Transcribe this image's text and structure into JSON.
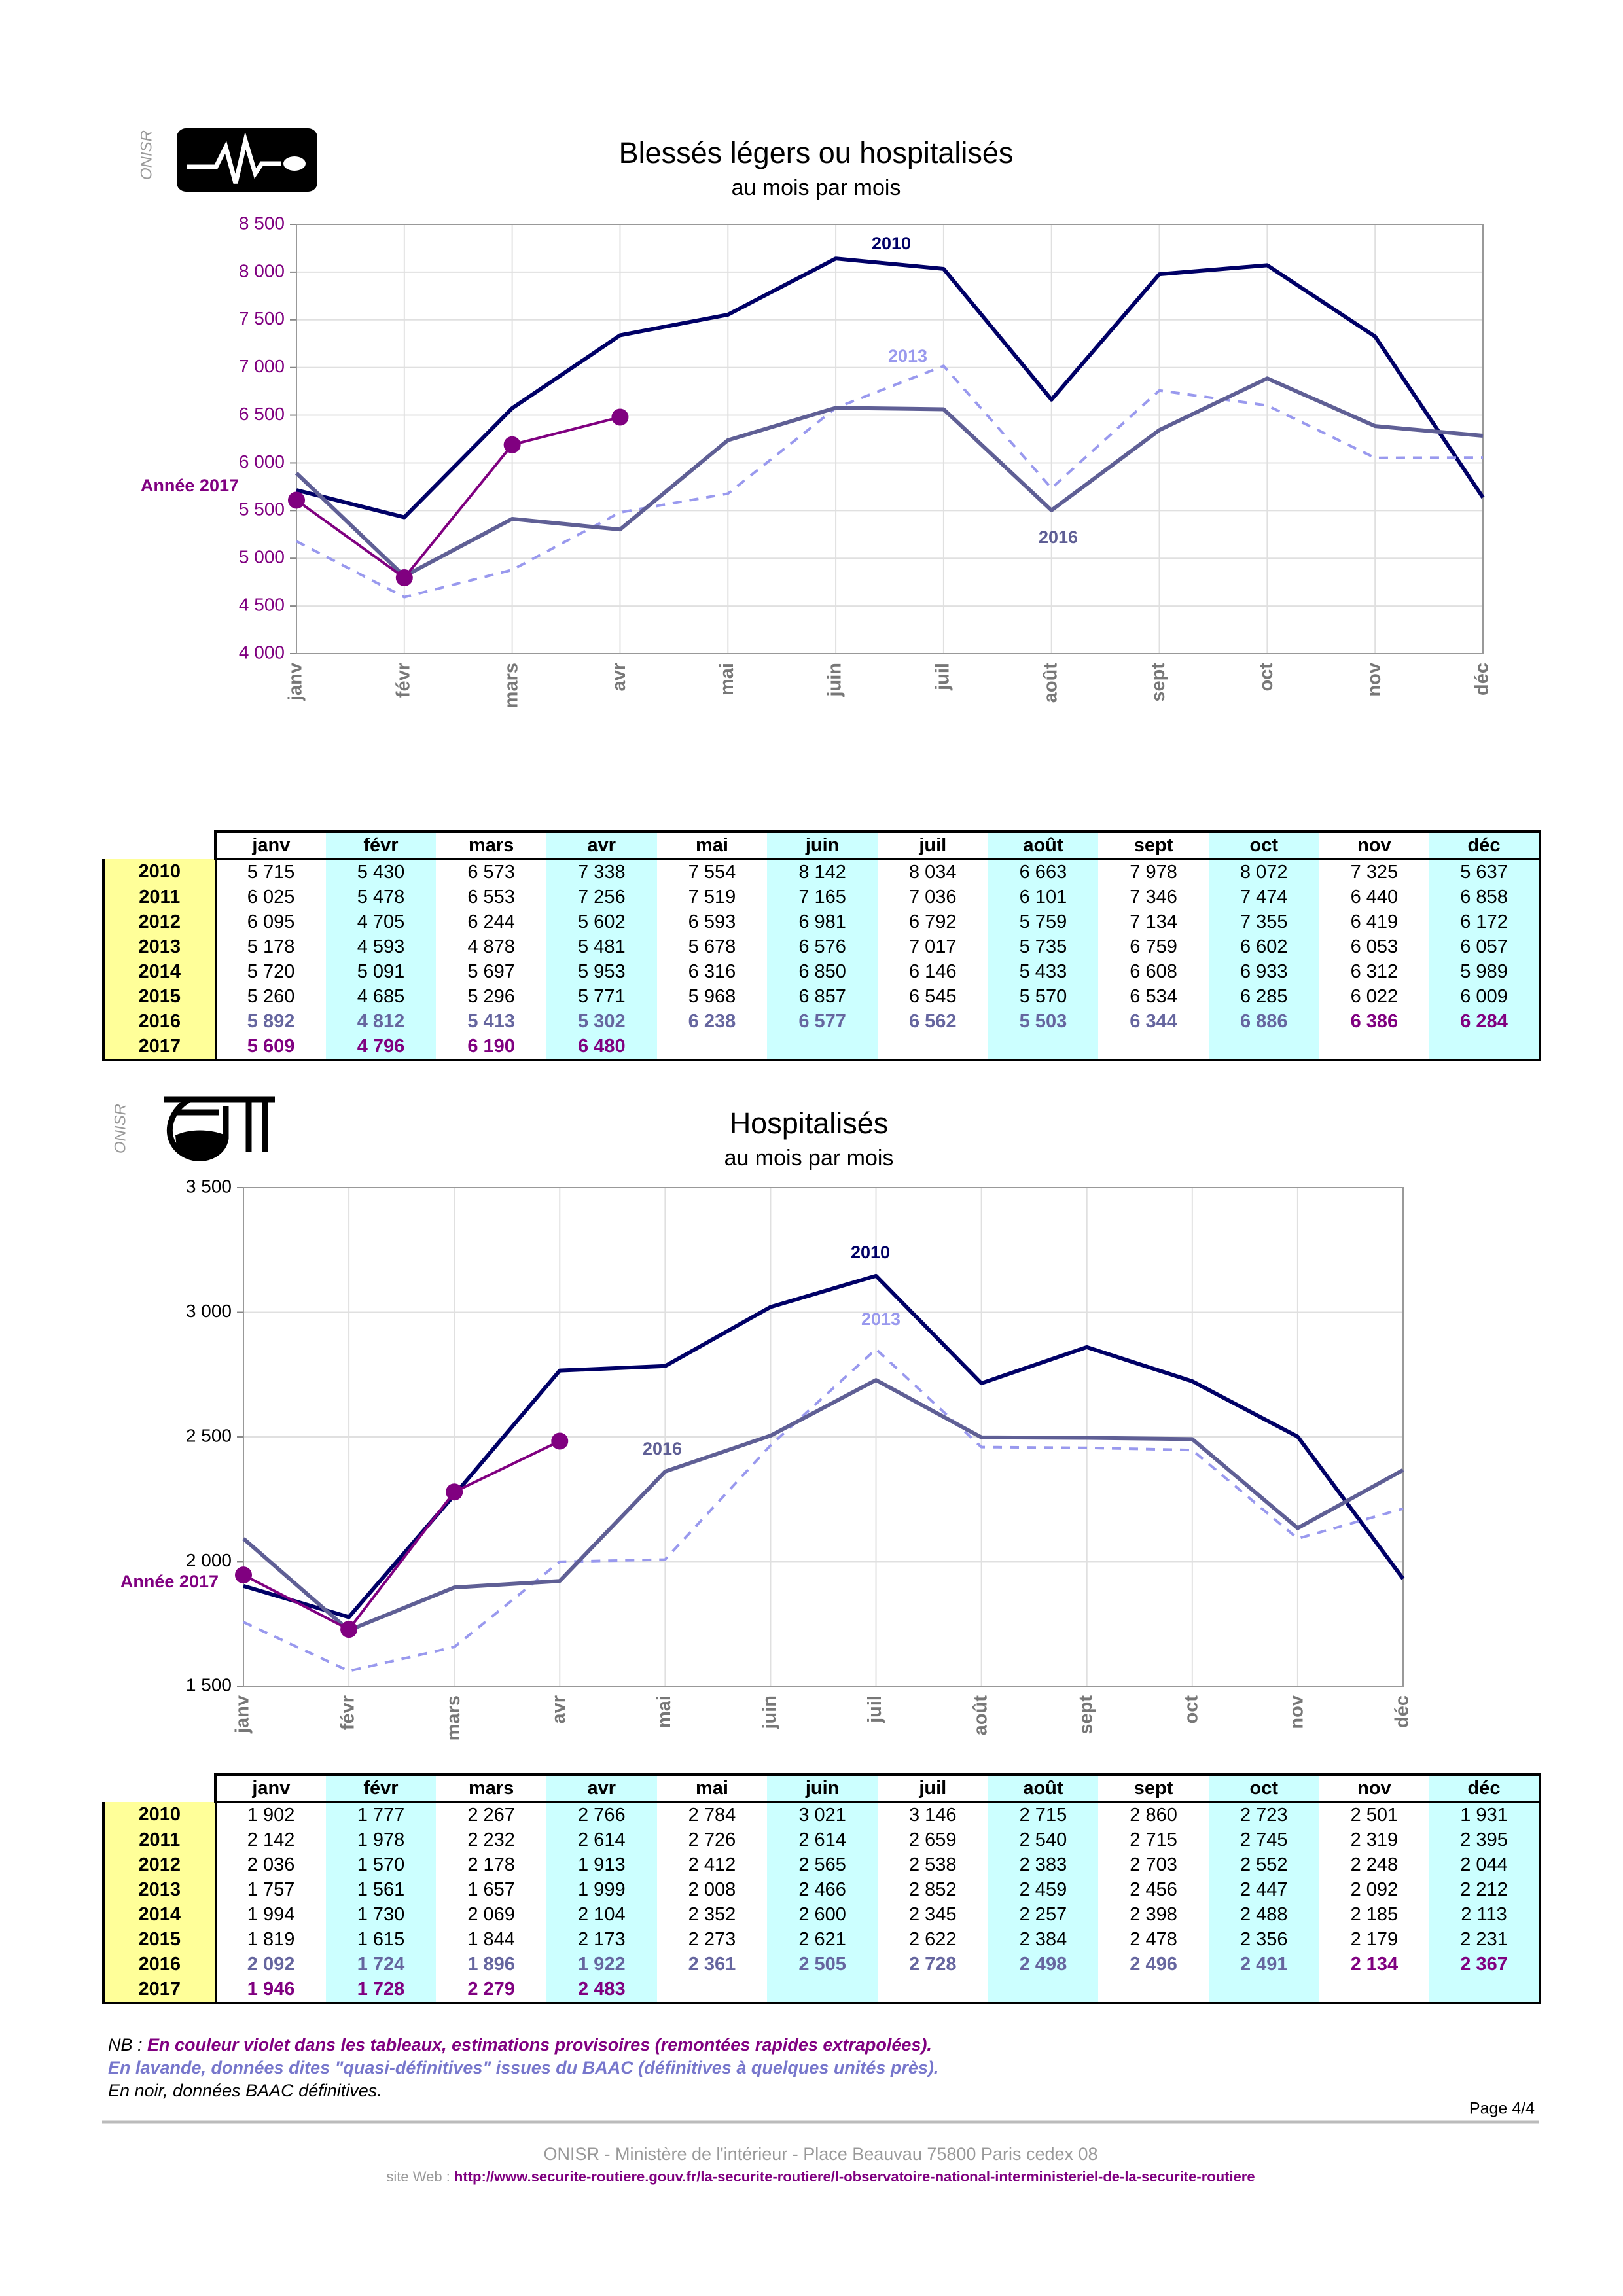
{
  "logo_label": "ONISR",
  "chart_data": [
    {
      "type": "line",
      "title": "Blessés légers ou hospitalisés",
      "subtitle": "au mois par mois",
      "categories": [
        "janv",
        "févr",
        "mars",
        "avr",
        "mai",
        "juin",
        "juil",
        "août",
        "sept",
        "oct",
        "nov",
        "déc"
      ],
      "ylim": [
        4000,
        8500
      ],
      "yticks": [
        {
          "value": 4000,
          "label": "4 000"
        },
        {
          "value": 4500,
          "label": "4 500"
        },
        {
          "value": 5000,
          "label": "5 000"
        },
        {
          "value": 5500,
          "label": "5 500"
        },
        {
          "value": 6000,
          "label": "6 000"
        },
        {
          "value": 6500,
          "label": "6 500"
        },
        {
          "value": 7000,
          "label": "7 000"
        },
        {
          "value": 7500,
          "label": "7 500"
        },
        {
          "value": 8000,
          "label": "8 000"
        },
        {
          "value": 8500,
          "label": "8 500"
        }
      ],
      "grid": true,
      "series": [
        {
          "name": "2010",
          "color": "#000066",
          "values": [
            5715,
            5430,
            6573,
            7338,
            7554,
            8142,
            8034,
            6663,
            7978,
            8072,
            7325,
            5637
          ]
        },
        {
          "name": "2013",
          "color": "#9999ee",
          "dashed": true,
          "values": [
            5178,
            4593,
            4878,
            5481,
            5678,
            6576,
            7017,
            5735,
            6759,
            6602,
            6053,
            6057
          ]
        },
        {
          "name": "2016",
          "color": "#5f5f95",
          "values": [
            5892,
            4812,
            5413,
            5302,
            6238,
            6577,
            6562,
            5503,
            6344,
            6886,
            6386,
            6284
          ]
        },
        {
          "name": "Année 2017",
          "color": "#800080",
          "markers": true,
          "values": [
            5609,
            4796,
            6190,
            6480,
            null,
            null,
            null,
            null,
            null,
            null,
            null,
            null
          ]
        }
      ]
    },
    {
      "type": "line",
      "title": "Hospitalisés",
      "subtitle": "au mois par mois",
      "categories": [
        "janv",
        "févr",
        "mars",
        "avr",
        "mai",
        "juin",
        "juil",
        "août",
        "sept",
        "oct",
        "nov",
        "déc"
      ],
      "ylim": [
        1500,
        3500
      ],
      "yticks": [
        {
          "value": 1500,
          "label": "1 500"
        },
        {
          "value": 2000,
          "label": "2 000"
        },
        {
          "value": 2500,
          "label": "2 500"
        },
        {
          "value": 3000,
          "label": "3 000"
        },
        {
          "value": 3500,
          "label": "3 500"
        }
      ],
      "grid": true,
      "series": [
        {
          "name": "2010",
          "color": "#000066",
          "values": [
            1902,
            1777,
            2267,
            2766,
            2784,
            3021,
            3146,
            2715,
            2860,
            2723,
            2501,
            1931
          ]
        },
        {
          "name": "2013",
          "color": "#9999ee",
          "dashed": true,
          "values": [
            1757,
            1561,
            1657,
            1999,
            2008,
            2466,
            2852,
            2459,
            2456,
            2447,
            2092,
            2212
          ]
        },
        {
          "name": "2016",
          "color": "#5f5f95",
          "values": [
            2092,
            1724,
            1896,
            1922,
            2361,
            2505,
            2728,
            2498,
            2496,
            2491,
            2134,
            2367
          ]
        },
        {
          "name": "Année 2017",
          "color": "#800080",
          "markers": true,
          "values": [
            1946,
            1728,
            2279,
            2483,
            null,
            null,
            null,
            null,
            null,
            null,
            null,
            null
          ]
        }
      ]
    }
  ],
  "tables": [
    {
      "columns": [
        "janv",
        "févr",
        "mars",
        "avr",
        "mai",
        "juin",
        "juil",
        "août",
        "sept",
        "oct",
        "nov",
        "déc"
      ],
      "rows": [
        {
          "year": "2010",
          "values": [
            "5 715",
            "5 430",
            "6 573",
            "7 338",
            "7 554",
            "8 142",
            "8 034",
            "6 663",
            "7 978",
            "8 072",
            "7 325",
            "5 637"
          ]
        },
        {
          "year": "2011",
          "values": [
            "6 025",
            "5 478",
            "6 553",
            "7 256",
            "7 519",
            "7 165",
            "7 036",
            "6 101",
            "7 346",
            "7 474",
            "6 440",
            "6 858"
          ]
        },
        {
          "year": "2012",
          "values": [
            "6 095",
            "4 705",
            "6 244",
            "5 602",
            "6 593",
            "6 981",
            "6 792",
            "5 759",
            "7 134",
            "7 355",
            "6 419",
            "6 172"
          ]
        },
        {
          "year": "2013",
          "values": [
            "5 178",
            "4 593",
            "4 878",
            "5 481",
            "5 678",
            "6 576",
            "7 017",
            "5 735",
            "6 759",
            "6 602",
            "6 053",
            "6 057"
          ]
        },
        {
          "year": "2014",
          "values": [
            "5 720",
            "5 091",
            "5 697",
            "5 953",
            "6 316",
            "6 850",
            "6 146",
            "5 433",
            "6 608",
            "6 933",
            "6 312",
            "5 989"
          ]
        },
        {
          "year": "2015",
          "values": [
            "5 260",
            "4 685",
            "5 296",
            "5 771",
            "5 968",
            "6 857",
            "6 545",
            "5 570",
            "6 534",
            "6 285",
            "6 022",
            "6 009"
          ]
        },
        {
          "year": "2016",
          "values": [
            "5 892",
            "4 812",
            "5 413",
            "5 302",
            "6 238",
            "6 577",
            "6 562",
            "5 503",
            "6 344",
            "6 886",
            "6 386",
            "6 284"
          ]
        },
        {
          "year": "2017",
          "values": [
            "5 609",
            "4 796",
            "6 190",
            "6 480"
          ]
        }
      ]
    },
    {
      "columns": [
        "janv",
        "févr",
        "mars",
        "avr",
        "mai",
        "juin",
        "juil",
        "août",
        "sept",
        "oct",
        "nov",
        "déc"
      ],
      "rows": [
        {
          "year": "2010",
          "values": [
            "1 902",
            "1 777",
            "2 267",
            "2 766",
            "2 784",
            "3 021",
            "3 146",
            "2 715",
            "2 860",
            "2 723",
            "2 501",
            "1 931"
          ]
        },
        {
          "year": "2011",
          "values": [
            "2 142",
            "1 978",
            "2 232",
            "2 614",
            "2 726",
            "2 614",
            "2 659",
            "2 540",
            "2 715",
            "2 745",
            "2 319",
            "2 395"
          ]
        },
        {
          "year": "2012",
          "values": [
            "2 036",
            "1 570",
            "2 178",
            "1 913",
            "2 412",
            "2 565",
            "2 538",
            "2 383",
            "2 703",
            "2 552",
            "2 248",
            "2 044"
          ]
        },
        {
          "year": "2013",
          "values": [
            "1 757",
            "1 561",
            "1 657",
            "1 999",
            "2 008",
            "2 466",
            "2 852",
            "2 459",
            "2 456",
            "2 447",
            "2 092",
            "2 212"
          ]
        },
        {
          "year": "2014",
          "values": [
            "1 994",
            "1 730",
            "2 069",
            "2 104",
            "2 352",
            "2 600",
            "2 345",
            "2 257",
            "2 398",
            "2 488",
            "2 185",
            "2 113"
          ]
        },
        {
          "year": "2015",
          "values": [
            "1 819",
            "1 615",
            "1 844",
            "2 173",
            "2 273",
            "2 621",
            "2 622",
            "2 384",
            "2 478",
            "2 356",
            "2 179",
            "2 231"
          ]
        },
        {
          "year": "2016",
          "values": [
            "2 092",
            "1 724",
            "1 896",
            "1 922",
            "2 361",
            "2 505",
            "2 728",
            "2 498",
            "2 496",
            "2 491",
            "2 134",
            "2 367"
          ]
        },
        {
          "year": "2017",
          "values": [
            "1 946",
            "1 728",
            "2 279",
            "2 483"
          ]
        }
      ]
    }
  ],
  "notes": {
    "prefix": "NB : ",
    "violet": "En couleur violet dans les tableaux, estimations provisoires (remontées rapides extrapolées).",
    "lavender": "En lavande, données dites \"quasi-définitives\" issues du BAAC (définitives à quelques unités près).",
    "black": "En noir, données BAAC définitives."
  },
  "page": "Page 4/4",
  "footer": {
    "address": "ONISR - Ministère de l'intérieur - Place Beauvau 75800 Paris cedex 08",
    "site_label": "site Web : ",
    "url": "http://www.securite-routiere.gouv.fr/la-securite-routiere/l-observatoire-national-interministeriel-de-la-securite-routiere"
  }
}
